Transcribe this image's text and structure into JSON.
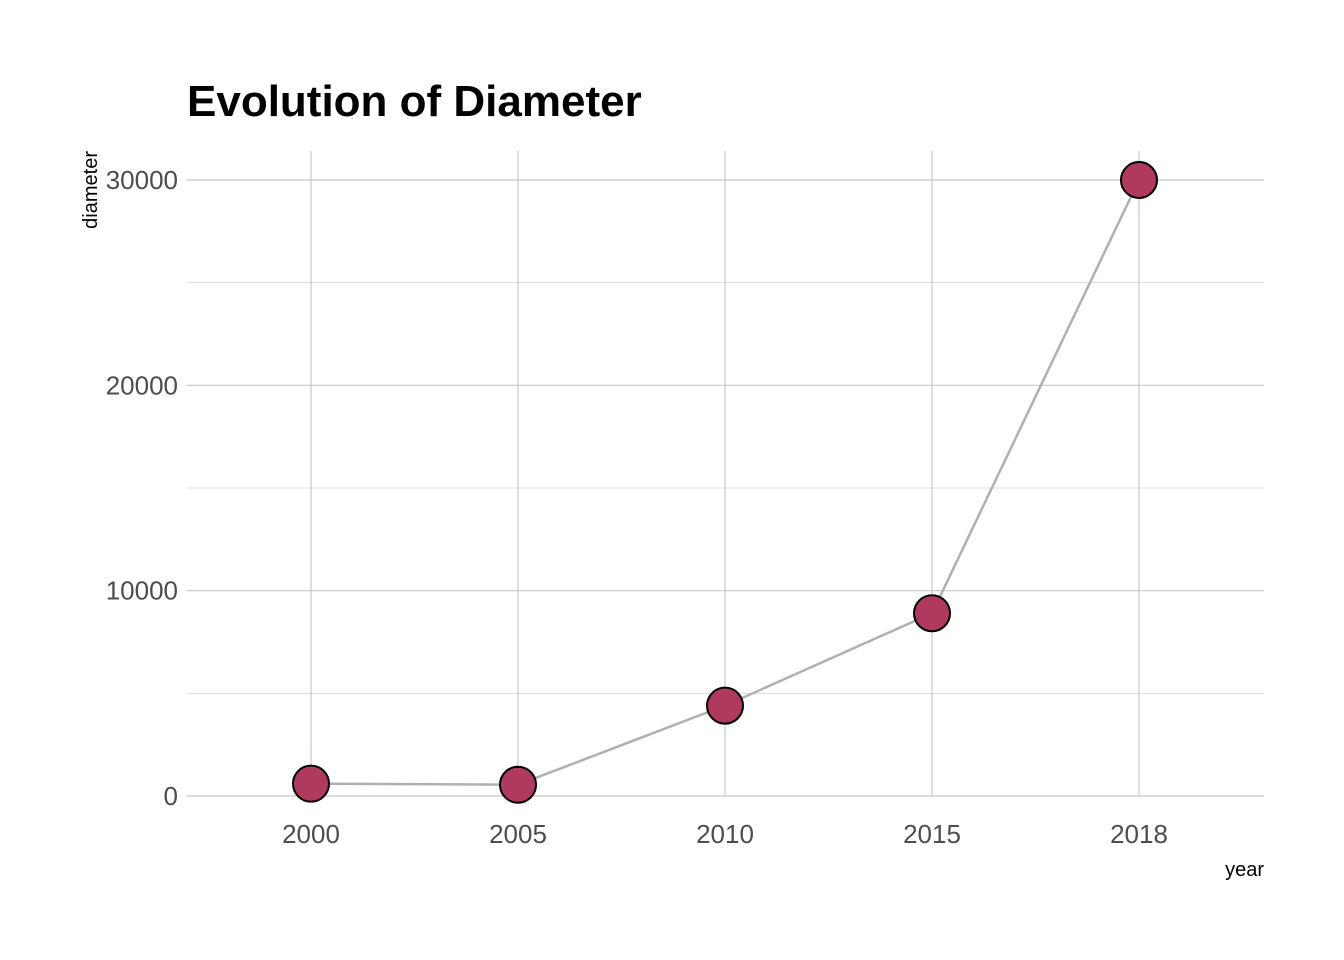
{
  "chart_data": {
    "type": "line",
    "title": "Evolution of Diameter",
    "xlabel": "year",
    "ylabel": "diameter",
    "categories": [
      "2000",
      "2005",
      "2010",
      "2015",
      "2018"
    ],
    "values": [
      600,
      550,
      4400,
      8900,
      30000
    ],
    "ylim": [
      0,
      30000
    ],
    "yticks": [
      "0",
      "10000",
      "20000",
      "30000"
    ],
    "grid": true,
    "legend": "none",
    "line_color": "#b0b0b0",
    "point_fill": "#b03a5e",
    "point_stroke": "#000000"
  }
}
